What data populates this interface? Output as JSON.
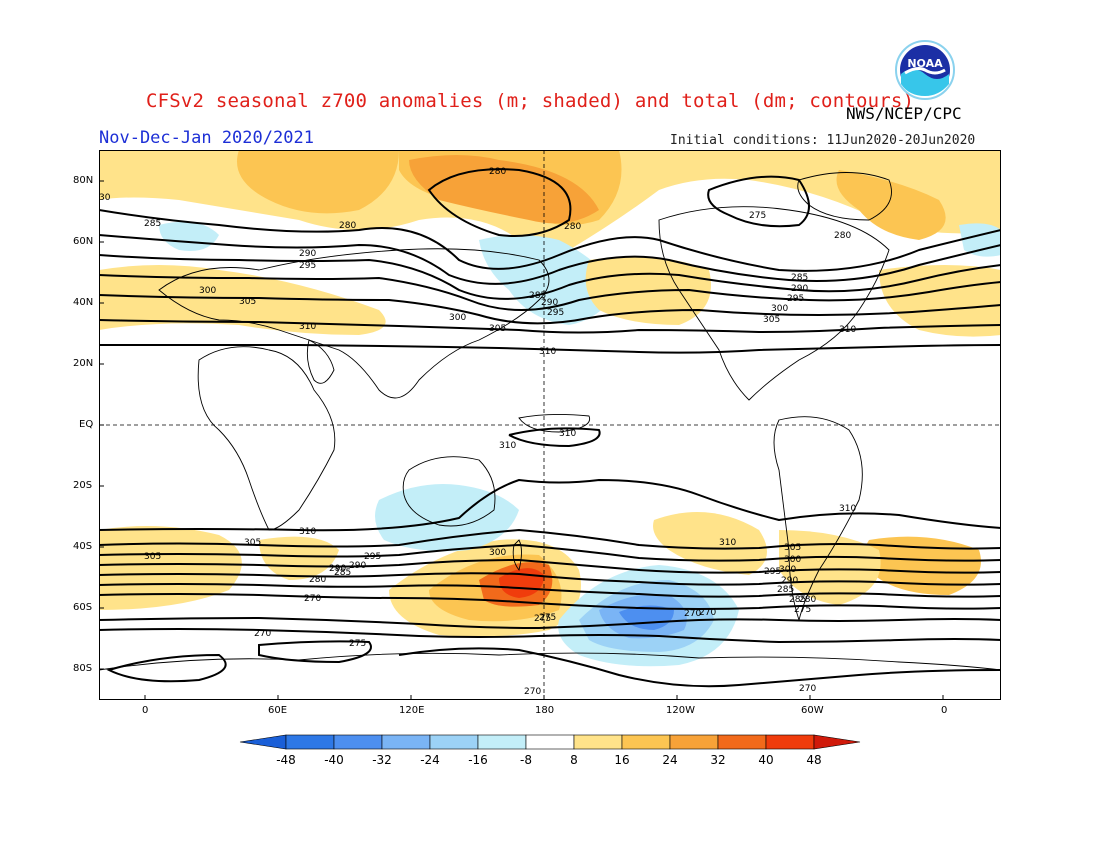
{
  "header": {
    "title": "CFSv2 seasonal z700 anomalies (m; shaded) and total (dm; contours)",
    "agency": "NWS/NCEP/CPC",
    "period": "Nov-Dec-Jan 2020/2021",
    "initial_conditions": "Initial conditions: 11Jun2020-20Jun2020",
    "logo_text": "NOAA"
  },
  "map": {
    "projection": "cylindrical equidistant",
    "lat_labels": [
      "80N",
      "60N",
      "40N",
      "20N",
      "EQ",
      "20S",
      "40S",
      "60S",
      "80S"
    ],
    "lon_labels": [
      "0",
      "60E",
      "120E",
      "180",
      "120W",
      "60W",
      "0"
    ],
    "contour_labels": [
      "280",
      "285",
      "280",
      "280",
      "275",
      "280",
      "290",
      "295",
      "300",
      "305",
      "310",
      "285",
      "290",
      "295",
      "300",
      "305",
      "310",
      "285",
      "290",
      "295",
      "300",
      "305",
      "310",
      "310",
      "310",
      "310",
      "310",
      "305",
      "300",
      "295",
      "290",
      "285",
      "280",
      "270",
      "270",
      "275",
      "305",
      "300",
      "290",
      "285",
      "275",
      "270",
      "275",
      "310",
      "305",
      "300",
      "295",
      "290",
      "285",
      "280",
      "275",
      "270",
      "270",
      "270",
      "30"
    ],
    "colors": {
      "neg48": "#1a5fd8",
      "neg40": "#2e78e6",
      "neg32": "#4d8ff0",
      "neg24": "#7ab4f5",
      "neg16": "#9cd2f6",
      "neg8": "#c3eef8",
      "neutral": "#ffffff",
      "pos8": "#ffe38a",
      "pos16": "#fcc552",
      "pos24": "#f7a238",
      "pos32": "#f26a1b",
      "pos40": "#f03c0c",
      "pos48": "#d01a0a"
    }
  },
  "colorbar": {
    "labels": [
      "-48",
      "-40",
      "-32",
      "-24",
      "-16",
      "-8",
      "8",
      "16",
      "24",
      "32",
      "40",
      "48"
    ],
    "colors": [
      "#1a5fd8",
      "#2e78e6",
      "#4d8ff0",
      "#7ab4f5",
      "#9cd2f6",
      "#c3eef8",
      "#ffffff",
      "#ffe38a",
      "#fcc552",
      "#f7a238",
      "#f26a1b",
      "#f03c0c",
      "#d01a0a"
    ]
  }
}
